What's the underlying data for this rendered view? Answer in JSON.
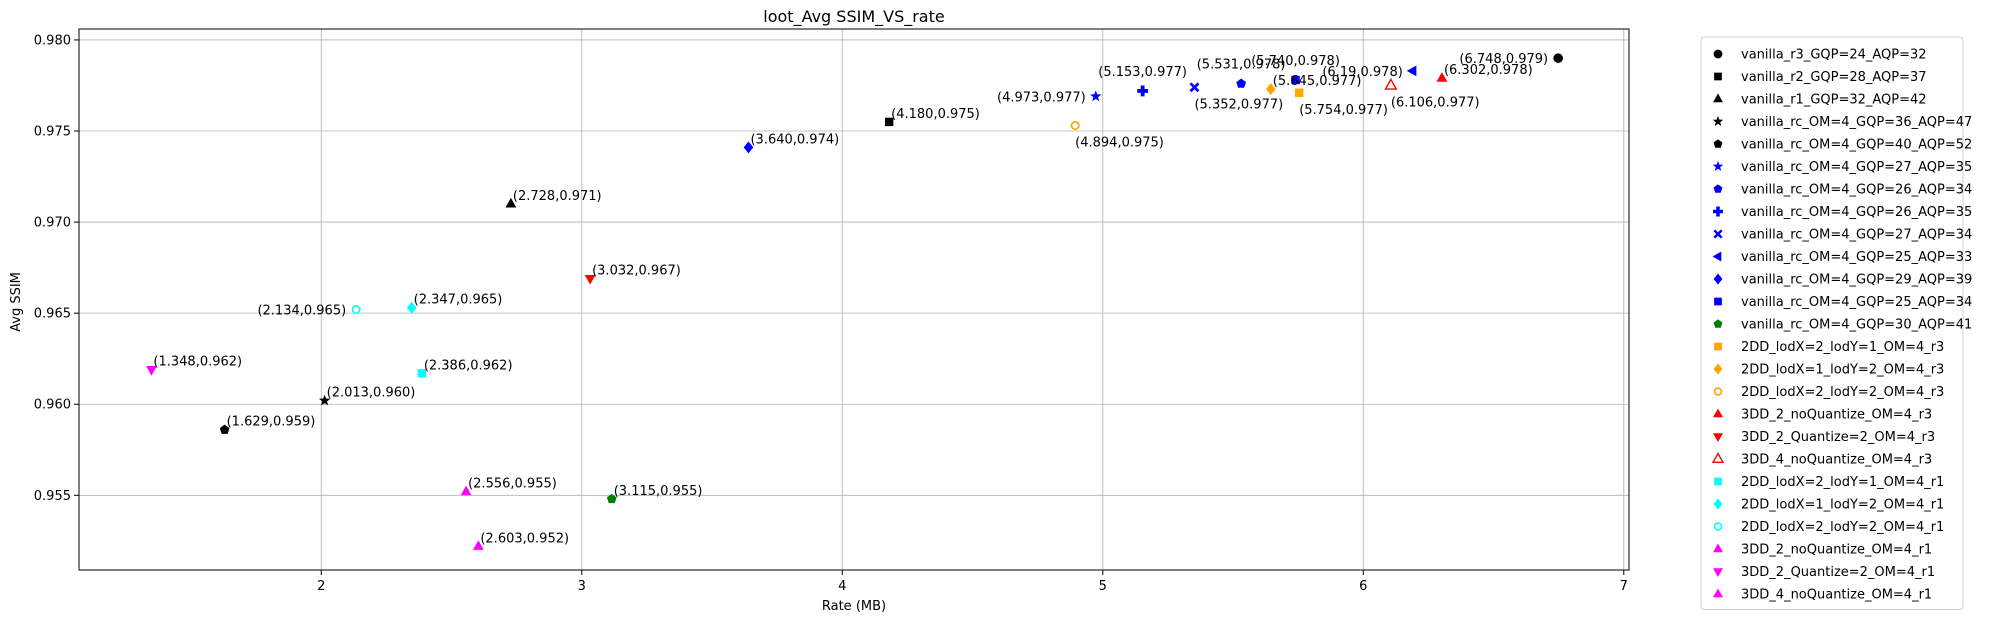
{
  "chart_data": {
    "type": "scatter",
    "title": "loot_Avg SSIM_VS_rate",
    "xlabel": "Rate (MB)",
    "ylabel": "Avg SSIM",
    "xlim": [
      1.07,
      7.02
    ],
    "ylim": [
      0.9509,
      0.9806
    ],
    "xticks": [
      2,
      3,
      4,
      5,
      6,
      7
    ],
    "yticks": [
      0.955,
      0.96,
      0.965,
      0.97,
      0.975,
      0.98
    ],
    "xtick_labels": [
      "2",
      "3",
      "4",
      "5",
      "6",
      "7"
    ],
    "ytick_labels": [
      "0.955",
      "0.960",
      "0.965",
      "0.970",
      "0.975",
      "0.980"
    ],
    "grid": true,
    "legend_position": "outside-right",
    "series": [
      {
        "name": "vanilla_r3_GQP=24_AQP=32",
        "color": "#000000",
        "marker": "circle",
        "x": 6.748,
        "y": 0.979,
        "label": "(6.748,0.979)",
        "label_side": "left"
      },
      {
        "name": "vanilla_r2_GQP=28_AQP=37",
        "color": "#000000",
        "marker": "square",
        "x": 4.18,
        "y": 0.9755,
        "label": "(4.180,0.975)",
        "label_side": "right"
      },
      {
        "name": "vanilla_r1_GQP=32_AQP=42",
        "color": "#000000",
        "marker": "triangle-up",
        "x": 2.728,
        "y": 0.971,
        "label": "(2.728,0.971)",
        "label_side": "right"
      },
      {
        "name": "vanilla_rc_OM=4_GQP=36_AQP=47",
        "color": "#000000",
        "marker": "star",
        "x": 2.013,
        "y": 0.9602,
        "label": "(2.013,0.960)",
        "label_side": "right"
      },
      {
        "name": "vanilla_rc_OM=4_GQP=40_AQP=52",
        "color": "#000000",
        "marker": "pentagon",
        "x": 1.629,
        "y": 0.9586,
        "label": "(1.629,0.959)",
        "label_side": "right"
      },
      {
        "name": "vanilla_rc_OM=4_GQP=27_AQP=35",
        "color": "#0000ff",
        "marker": "star",
        "x": 4.973,
        "y": 0.9769,
        "label": "(4.973,0.977)",
        "label_side": "left"
      },
      {
        "name": "vanilla_rc_OM=4_GQP=26_AQP=34",
        "color": "#0000ff",
        "marker": "pentagon",
        "x": 5.531,
        "y": 0.9776,
        "label": "(5.531,0.978)",
        "label_side": "above"
      },
      {
        "name": "vanilla_rc_OM=4_GQP=26_AQP=35",
        "color": "#0000ff",
        "marker": "plus",
        "x": 5.153,
        "y": 0.9772,
        "label": "(5.153,0.977)",
        "label_side": "above"
      },
      {
        "name": "vanilla_rc_OM=4_GQP=27_AQP=34",
        "color": "#0000ff",
        "marker": "x",
        "x": 5.352,
        "y": 0.9774,
        "label": "(5.352,0.977)",
        "label_side": "below"
      },
      {
        "name": "vanilla_rc_OM=4_GQP=25_AQP=33",
        "color": "#0000ff",
        "marker": "triangle-left",
        "x": 6.19,
        "y": 0.9783,
        "label": "(6.19,0.978)",
        "label_side": "left"
      },
      {
        "name": "vanilla_rc_OM=4_GQP=29_AQP=39",
        "color": "#0000ff",
        "marker": "diamond",
        "x": 3.64,
        "y": 0.9741,
        "label": "(3.640,0.974)",
        "label_side": "right"
      },
      {
        "name": "vanilla_rc_OM=4_GQP=25_AQP=34",
        "color": "#0000ff",
        "marker": "square",
        "x": 5.74,
        "y": 0.9778,
        "label": "(5.740,0.978)",
        "label_side": "above"
      },
      {
        "name": "vanilla_rc_OM=4_GQP=30_AQP=41",
        "color": "#008000",
        "marker": "pentagon",
        "x": 3.115,
        "y": 0.9548,
        "label": "(3.115,0.955)",
        "label_side": "right"
      },
      {
        "name": "2DD_lodX=2_lodY=1_OM=4_r3",
        "color": "#ffa500",
        "marker": "square",
        "x": 5.754,
        "y": 0.9771,
        "label": "(5.754,0.977)",
        "label_side": "below"
      },
      {
        "name": "2DD_lodX=1_lodY=2_OM=4_r3",
        "color": "#ffa500",
        "marker": "diamond",
        "x": 5.645,
        "y": 0.9773,
        "label": "(5.645,0.977)",
        "label_side": "right"
      },
      {
        "name": "2DD_lodX=2_lodY=2_OM=4_r3",
        "color": "#ffa500",
        "marker": "open-circle",
        "x": 4.894,
        "y": 0.9753,
        "label": "(4.894,0.975)",
        "label_side": "below"
      },
      {
        "name": "3DD_2_noQuantize_OM=4_r3",
        "color": "#ff0000",
        "marker": "triangle-up",
        "x": 6.302,
        "y": 0.9779,
        "label": "(6.302,0.978)",
        "label_side": "right"
      },
      {
        "name": "3DD_2_Quantize=2_OM=4_r3",
        "color": "#ff0000",
        "marker": "triangle-down",
        "x": 3.032,
        "y": 0.9669,
        "label": "(3.032,0.967)",
        "label_side": "right"
      },
      {
        "name": "3DD_4_noQuantize_OM=4_r3",
        "color": "#ff0000",
        "marker": "open-triangle-up",
        "x": 6.106,
        "y": 0.9775,
        "label": "(6.106,0.977)",
        "label_side": "below"
      },
      {
        "name": "2DD_lodX=2_lodY=1_OM=4_r1",
        "color": "#00ffff",
        "marker": "square",
        "x": 2.386,
        "y": 0.9617,
        "label": "(2.386,0.962)",
        "label_side": "right"
      },
      {
        "name": "2DD_lodX=1_lodY=2_OM=4_r1",
        "color": "#00ffff",
        "marker": "diamond",
        "x": 2.347,
        "y": 0.9653,
        "label": "(2.347,0.965)",
        "label_side": "right"
      },
      {
        "name": "2DD_lodX=2_lodY=2_OM=4_r1",
        "color": "#00ffff",
        "marker": "open-circle",
        "x": 2.134,
        "y": 0.9652,
        "label": "(2.134,0.965)",
        "label_side": "left"
      },
      {
        "name": "3DD_2_noQuantize_OM=4_r1",
        "color": "#ff00ff",
        "marker": "triangle-up",
        "x": 2.556,
        "y": 0.9552,
        "label": "(2.556,0.955)",
        "label_side": "right"
      },
      {
        "name": "3DD_2_Quantize=2_OM=4_r1",
        "color": "#ff00ff",
        "marker": "triangle-down",
        "x": 1.348,
        "y": 0.9619,
        "label": "(1.348,0.962)",
        "label_side": "right"
      },
      {
        "name": "3DD_4_noQuantize_OM=4_r1",
        "color": "#ff00ff",
        "marker": "triangle-up",
        "x": 2.603,
        "y": 0.9522,
        "label": "(2.603,0.952)",
        "label_side": "right"
      }
    ]
  }
}
